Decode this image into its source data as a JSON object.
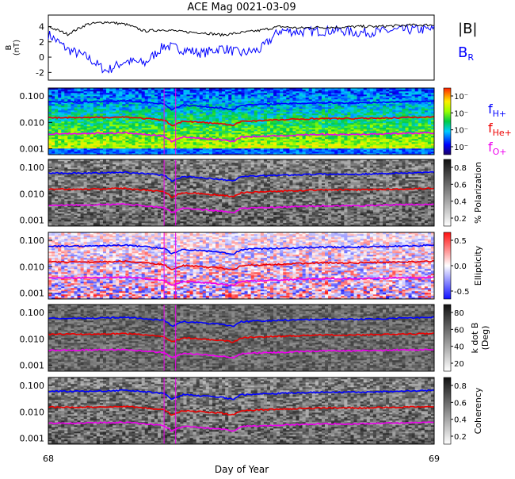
{
  "title": "ACE Mag 0021-03-09",
  "xlabel": "Day of Year",
  "x_ticks": [
    "68",
    "69"
  ],
  "top_panel": {
    "ylabel_line1": "B",
    "ylabel_line2": "(nT)",
    "y_ticks": [
      "4",
      "2",
      "0",
      "-2"
    ],
    "legend": {
      "b_total_label": "|B|",
      "b_radial_label_main": "B",
      "b_radial_label_sub": "R"
    },
    "colors": {
      "b_total": "#000000",
      "b_radial": "#0000ff"
    }
  },
  "freq_legend": {
    "h": {
      "main": "f",
      "sub": "H+",
      "color": "#0000ff"
    },
    "he": {
      "main": "f",
      "sub": "He+",
      "color": "#ee0000"
    },
    "o": {
      "main": "f",
      "sub": "O+",
      "color": "#ee00ee"
    }
  },
  "freq_y_ticks": [
    "0.100",
    "0.010",
    "0.001"
  ],
  "panels": [
    {
      "key": "power",
      "colorbar_label": "",
      "colorbar_ticks": [
        "10⁻",
        "10⁻",
        "10⁻",
        "10⁻"
      ],
      "colormap": "rainbow"
    },
    {
      "key": "polarization",
      "colorbar_label": "% Polarization",
      "colorbar_ticks": [
        "0.8",
        "0.6",
        "0.4",
        "0.2"
      ],
      "colormap": "gray"
    },
    {
      "key": "ellipticity",
      "colorbar_label": "Ellipticity",
      "colorbar_ticks": [
        "0.5",
        "0.0",
        "-0.5"
      ],
      "colormap": "bwr"
    },
    {
      "key": "kdotb",
      "colorbar_label_line1": "k dot B",
      "colorbar_label_line2": "(Deg)",
      "colorbar_ticks": [
        "80",
        "60",
        "40",
        "20"
      ],
      "colormap": "gray"
    },
    {
      "key": "coherency",
      "colorbar_label": "Coherency",
      "colorbar_ticks": [
        "0.8",
        "0.6",
        "0.4",
        "0.2"
      ],
      "colormap": "gray"
    }
  ],
  "chart_data": {
    "type": "line",
    "title": "ACE Mag 0021-03-09",
    "xlabel": "Day of Year",
    "xlim": [
      68,
      69
    ],
    "series": [
      {
        "name": "|B|",
        "panel": "top",
        "x": [
          68.0,
          68.05,
          68.1,
          68.15,
          68.2,
          68.25,
          68.3,
          68.35,
          68.4,
          68.45,
          68.5,
          68.55,
          68.6,
          68.65,
          68.7,
          68.75,
          68.8,
          68.85,
          68.9,
          68.95,
          69.0
        ],
        "values": [
          4.0,
          3.0,
          4.3,
          4.6,
          4.3,
          3.4,
          3.6,
          3.3,
          3.2,
          2.9,
          3.2,
          3.5,
          4.0,
          3.8,
          3.9,
          3.9,
          4.0,
          4.0,
          4.1,
          4.2,
          4.2
        ]
      },
      {
        "name": "B_R",
        "panel": "top",
        "x": [
          68.0,
          68.05,
          68.1,
          68.15,
          68.2,
          68.25,
          68.3,
          68.35,
          68.4,
          68.45,
          68.5,
          68.55,
          68.6,
          68.65,
          68.7,
          68.75,
          68.8,
          68.85,
          68.9,
          68.95,
          69.0
        ],
        "values": [
          3.0,
          1.0,
          0.0,
          -1.8,
          -0.5,
          -0.8,
          1.5,
          1.0,
          0.5,
          1.2,
          0.5,
          1.0,
          3.5,
          3.3,
          3.4,
          3.5,
          3.2,
          3.3,
          3.5,
          3.6,
          3.6
        ]
      },
      {
        "name": "f_H+",
        "panel": "spectra",
        "x": [
          68.0,
          68.1,
          68.2,
          68.3,
          68.32,
          68.35,
          68.4,
          68.45,
          68.48,
          68.5,
          68.6,
          68.7,
          68.8,
          68.9,
          69.0
        ],
        "values": [
          0.06,
          0.06,
          0.065,
          0.05,
          0.03,
          0.045,
          0.04,
          0.035,
          0.03,
          0.045,
          0.05,
          0.055,
          0.055,
          0.06,
          0.065
        ]
      },
      {
        "name": "f_He+",
        "panel": "spectra",
        "x": [
          68.0,
          68.1,
          68.2,
          68.3,
          68.32,
          68.35,
          68.4,
          68.45,
          68.48,
          68.5,
          68.6,
          68.7,
          68.8,
          68.9,
          69.0
        ],
        "values": [
          0.015,
          0.015,
          0.016,
          0.012,
          0.0075,
          0.011,
          0.01,
          0.0088,
          0.0075,
          0.011,
          0.0125,
          0.014,
          0.014,
          0.015,
          0.016
        ]
      },
      {
        "name": "f_O+",
        "panel": "spectra",
        "x": [
          68.0,
          68.1,
          68.2,
          68.3,
          68.32,
          68.35,
          68.4,
          68.45,
          68.48,
          68.5,
          68.6,
          68.7,
          68.8,
          68.9,
          69.0
        ],
        "values": [
          0.0037,
          0.0038,
          0.004,
          0.003,
          0.0019,
          0.0028,
          0.0025,
          0.0022,
          0.0019,
          0.0028,
          0.0031,
          0.0035,
          0.0035,
          0.0038,
          0.004
        ]
      }
    ],
    "top_ylim": [
      -3,
      5.5
    ],
    "spectra_ylim": [
      0.0006,
      0.2
    ],
    "spectra_yscale": "log"
  }
}
